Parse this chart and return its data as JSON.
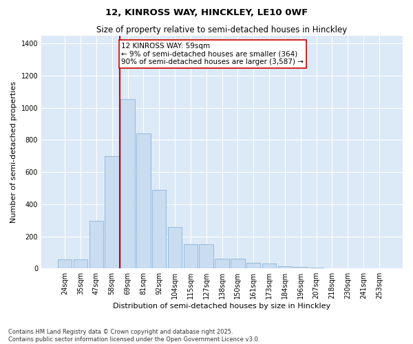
{
  "title": "12, KINROSS WAY, HINCKLEY, LE10 0WF",
  "subtitle": "Size of property relative to semi-detached houses in Hinckley",
  "xlabel": "Distribution of semi-detached houses by size in Hinckley",
  "ylabel": "Number of semi-detached properties",
  "categories": [
    "24sqm",
    "35sqm",
    "47sqm",
    "58sqm",
    "69sqm",
    "81sqm",
    "92sqm",
    "104sqm",
    "115sqm",
    "127sqm",
    "138sqm",
    "150sqm",
    "161sqm",
    "173sqm",
    "184sqm",
    "196sqm",
    "207sqm",
    "218sqm",
    "230sqm",
    "241sqm",
    "253sqm"
  ],
  "values": [
    55,
    55,
    295,
    700,
    1055,
    840,
    490,
    260,
    150,
    150,
    60,
    60,
    35,
    30,
    15,
    10,
    5,
    3,
    2,
    1,
    0
  ],
  "bar_color": "#c9dcf0",
  "bar_edge_color": "#8ab4d8",
  "vline_color": "#cc0000",
  "vline_x_index": 3.5,
  "annotation_text": "12 KINROSS WAY: 59sqm\n← 9% of semi-detached houses are smaller (364)\n90% of semi-detached houses are larger (3,587) →",
  "annotation_box_facecolor": "#ffffff",
  "annotation_box_edgecolor": "#cc0000",
  "ylim": [
    0,
    1450
  ],
  "yticks": [
    0,
    200,
    400,
    600,
    800,
    1000,
    1200,
    1400
  ],
  "background_color": "#dce9f7",
  "fig_facecolor": "#ffffff",
  "footnote": "Contains HM Land Registry data © Crown copyright and database right 2025.\nContains public sector information licensed under the Open Government Licence v3.0.",
  "title_fontsize": 9.5,
  "subtitle_fontsize": 8.5,
  "tick_fontsize": 7,
  "ylabel_fontsize": 8,
  "xlabel_fontsize": 8,
  "footnote_fontsize": 6,
  "annotation_fontsize": 7.5
}
